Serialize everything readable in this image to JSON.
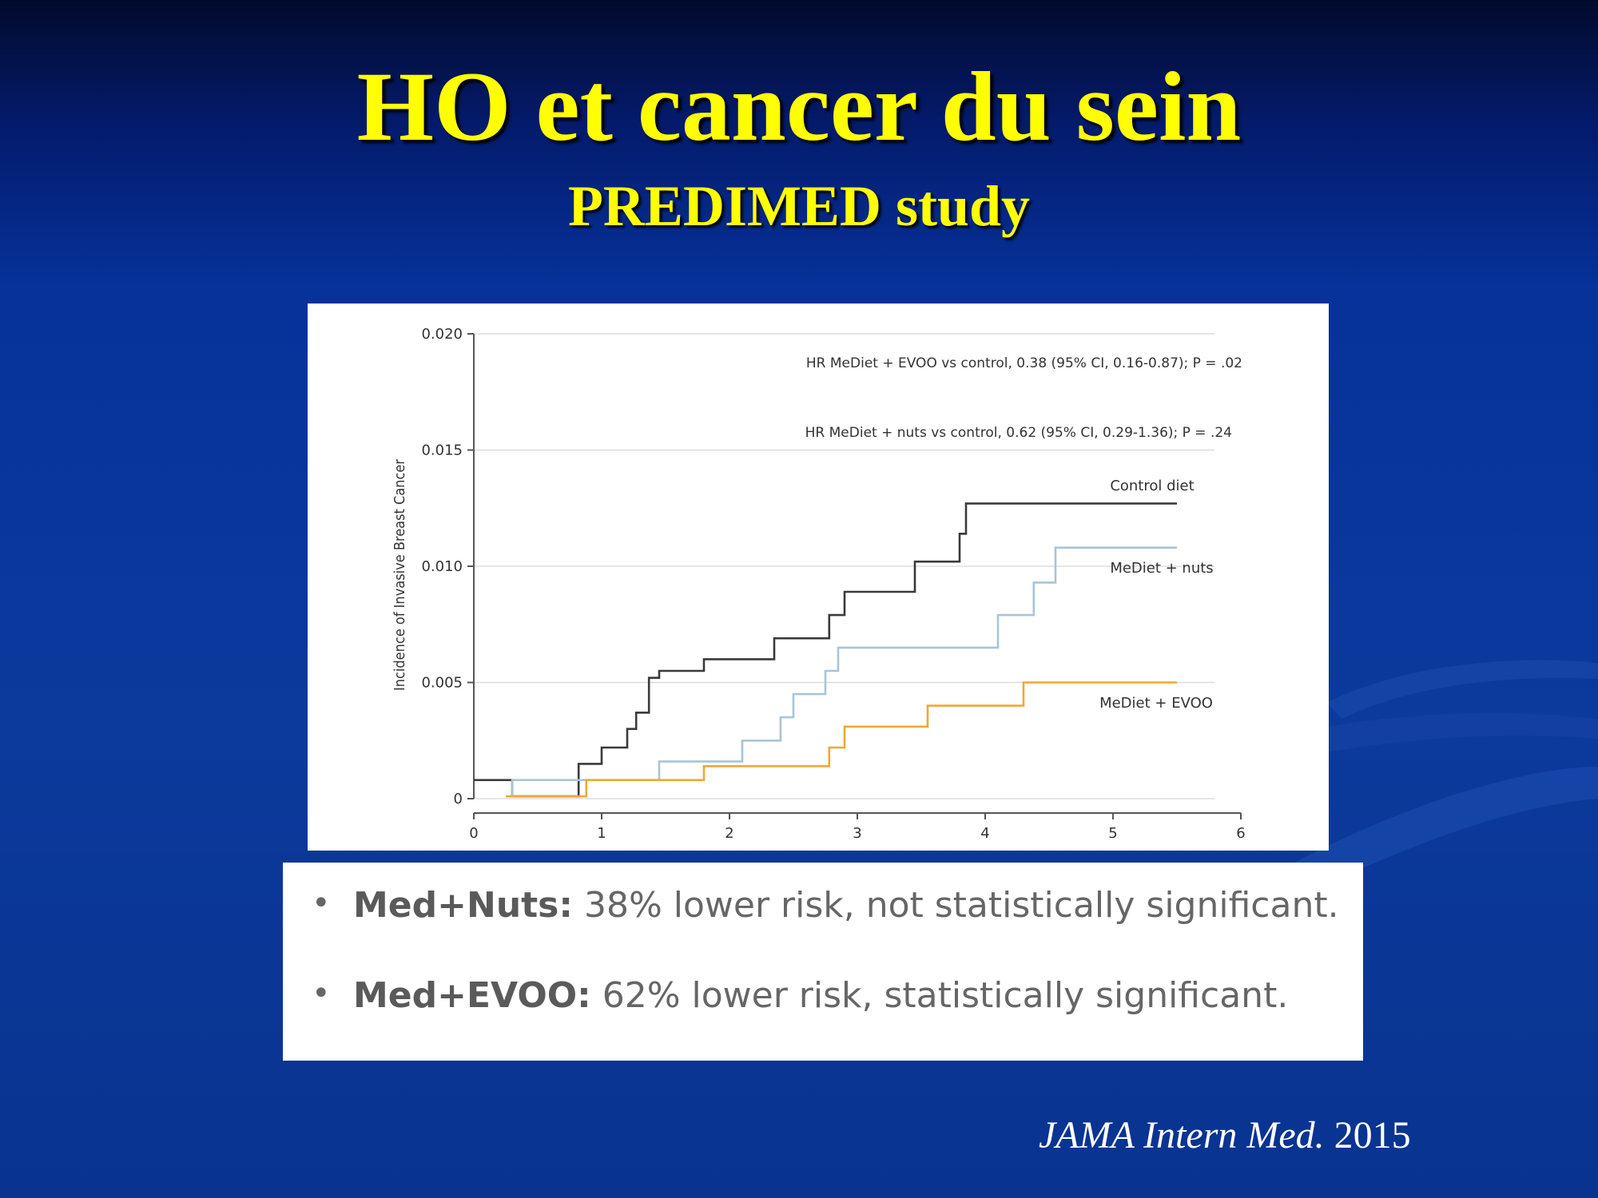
{
  "slide": {
    "title": "HO et cancer du sein",
    "subtitle": "PREDIMED study",
    "citation_journal": "JAMA Intern Med.",
    "citation_year": "2015"
  },
  "colors": {
    "title": "#ffff00",
    "control": "#3a3a3a",
    "nuts": "#a9c4d8",
    "evoo": "#f0a830"
  },
  "bullets": [
    {
      "label": "Med+Nuts:",
      "text": " 38% lower risk, not statistically significant."
    },
    {
      "label": "Med+EVOO:",
      "text": " 62% lower risk, statistically significant."
    }
  ],
  "chart_data": {
    "type": "line",
    "step": true,
    "ylabel": "Incidence of Invasive Breast Cancer",
    "xlabel": "",
    "xlim": [
      0,
      6
    ],
    "ylim": [
      0,
      0.02
    ],
    "x_ticks": [
      "0",
      "1",
      "2",
      "3",
      "4",
      "5",
      "6"
    ],
    "y_ticks": [
      "0",
      "0.005",
      "0.010",
      "0.015",
      "0.020"
    ],
    "grid": "horizontal",
    "annotations": [
      "HR MeDiet + EVOO vs control, 0.38 (95% CI, 0.16-0.87); P = .02",
      "HR MeDiet + nuts vs control, 0.62 (95% CI, 0.29-1.36); P = .24"
    ],
    "series": [
      {
        "name": "Control diet",
        "points": [
          [
            0,
            0.0008
          ],
          [
            0.3,
            0.0008
          ],
          [
            0.3,
            0.0001
          ],
          [
            0.82,
            0.0001
          ],
          [
            0.82,
            0.0015
          ],
          [
            1.0,
            0.0015
          ],
          [
            1.0,
            0.0022
          ],
          [
            1.2,
            0.0022
          ],
          [
            1.2,
            0.003
          ],
          [
            1.27,
            0.003
          ],
          [
            1.27,
            0.0037
          ],
          [
            1.37,
            0.0037
          ],
          [
            1.37,
            0.0052
          ],
          [
            1.45,
            0.0052
          ],
          [
            1.45,
            0.0055
          ],
          [
            1.8,
            0.0055
          ],
          [
            1.8,
            0.006
          ],
          [
            2.35,
            0.006
          ],
          [
            2.35,
            0.0069
          ],
          [
            2.78,
            0.0069
          ],
          [
            2.78,
            0.0079
          ],
          [
            2.9,
            0.0079
          ],
          [
            2.9,
            0.0089
          ],
          [
            3.45,
            0.0089
          ],
          [
            3.45,
            0.0102
          ],
          [
            3.8,
            0.0102
          ],
          [
            3.8,
            0.0114
          ],
          [
            3.85,
            0.0114
          ],
          [
            3.85,
            0.0127
          ],
          [
            5.5,
            0.0127
          ]
        ]
      },
      {
        "name": "MeDiet + nuts",
        "points": [
          [
            0.3,
            0.0001
          ],
          [
            0.3,
            0.0008
          ],
          [
            0.9,
            0.0008
          ],
          [
            0.9,
            0.0008
          ],
          [
            1.45,
            0.0008
          ],
          [
            1.45,
            0.0016
          ],
          [
            2.1,
            0.0016
          ],
          [
            2.1,
            0.0025
          ],
          [
            2.4,
            0.0025
          ],
          [
            2.4,
            0.0035
          ],
          [
            2.5,
            0.0035
          ],
          [
            2.5,
            0.0045
          ],
          [
            2.75,
            0.0045
          ],
          [
            2.75,
            0.0055
          ],
          [
            2.85,
            0.0055
          ],
          [
            2.85,
            0.0065
          ],
          [
            4.1,
            0.0065
          ],
          [
            4.1,
            0.0079
          ],
          [
            4.38,
            0.0079
          ],
          [
            4.38,
            0.0093
          ],
          [
            4.55,
            0.0093
          ],
          [
            4.55,
            0.0108
          ],
          [
            5.5,
            0.0108
          ]
        ]
      },
      {
        "name": "MeDiet + EVOO",
        "points": [
          [
            0.25,
            0.0001
          ],
          [
            0.88,
            0.0001
          ],
          [
            0.88,
            0.0008
          ],
          [
            1.8,
            0.0008
          ],
          [
            1.8,
            0.0014
          ],
          [
            2.78,
            0.0014
          ],
          [
            2.78,
            0.0022
          ],
          [
            2.9,
            0.0022
          ],
          [
            2.9,
            0.0031
          ],
          [
            3.55,
            0.0031
          ],
          [
            3.55,
            0.004
          ],
          [
            4.3,
            0.004
          ],
          [
            4.3,
            0.005
          ],
          [
            5.5,
            0.005
          ]
        ]
      }
    ]
  }
}
